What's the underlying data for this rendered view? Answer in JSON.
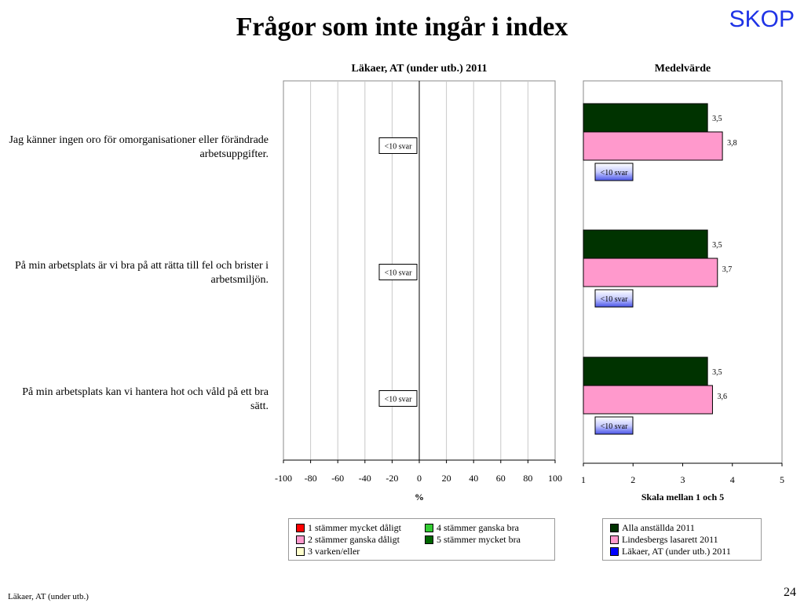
{
  "title": "Frågor som inte ingår i index",
  "brand": "SKOP",
  "footer": "Läkaer, AT (under utb.)",
  "page_number": "24",
  "questions": [
    {
      "text": "Jag känner ingen oro för omorganisationer eller förändrade arbetsuppgifter."
    },
    {
      "text": "På min arbetsplats är vi bra på att rätta till fel och brister i arbetsmiljön."
    },
    {
      "text": "På min arbetsplats kan vi hantera hot och våld på ett bra sätt."
    }
  ],
  "legend_left": [
    {
      "label": "1 stämmer mycket dåligt",
      "color": "#ff0000"
    },
    {
      "label": "2 stämmer ganska dåligt",
      "color": "#ff99cc"
    },
    {
      "label": "3 varken/eller",
      "color": "#ffffcc"
    },
    {
      "label": "4 stämmer ganska bra",
      "color": "#33cc33"
    },
    {
      "label": "5 stämmer mycket bra",
      "color": "#006600"
    }
  ],
  "legend_right": [
    {
      "label": "Alla anställda 2011",
      "color": "#003300"
    },
    {
      "label": "Lindesbergs lasarett 2011",
      "color": "#ff99cc"
    },
    {
      "label": "Läkaer, AT (under utb.) 2011",
      "color": "#0000ff"
    }
  ],
  "chart_data": [
    {
      "type": "bar",
      "title": "Läkaer, AT (under utb.) 2011",
      "xlabel": "%",
      "xlim": [
        -100,
        100
      ],
      "xticks": [
        -100,
        -80,
        -60,
        -40,
        -20,
        0,
        20,
        40,
        60,
        80,
        100
      ],
      "grid": true,
      "categories": [
        "Jag känner ingen oro för omorganisationer eller förändrade arbetsuppgifter.",
        "På min arbetsplats är vi bra på att rätta till fel och brister i arbetsmiljön.",
        "På min arbetsplats kan vi hantera hot och våld på ett bra sätt."
      ],
      "annotations": [
        "<10 svar",
        "<10 svar",
        "<10 svar"
      ]
    },
    {
      "type": "bar",
      "title": "Medelvärde",
      "xlabel": "Skala mellan 1 och 5",
      "xlim": [
        1,
        5
      ],
      "xticks": [
        1,
        2,
        3,
        4,
        5
      ],
      "grid": false,
      "categories": [
        "Jag känner ingen oro för omorganisationer eller förändrade arbetsuppgifter.",
        "På min arbetsplats är vi bra på att rätta till fel och brister i arbetsmiljön.",
        "På min arbetsplats kan vi hantera hot och våld på ett bra sätt."
      ],
      "series": [
        {
          "name": "Alla anställda 2011",
          "color": "#003300",
          "values": [
            3.5,
            3.5,
            3.5
          ],
          "labels": [
            "3,5",
            "3,5",
            "3,5"
          ]
        },
        {
          "name": "Lindesbergs lasarett 2011",
          "color": "#ff99cc",
          "values": [
            3.8,
            3.7,
            3.6
          ],
          "labels": [
            "3,8",
            "3,7",
            "3,6"
          ]
        },
        {
          "name": "Läkaer, AT (under utb.) 2011",
          "color": "#0000ff",
          "values": [
            null,
            null,
            null
          ],
          "labels": [
            "<10 svar",
            "<10 svar",
            "<10 svar"
          ]
        }
      ]
    }
  ]
}
